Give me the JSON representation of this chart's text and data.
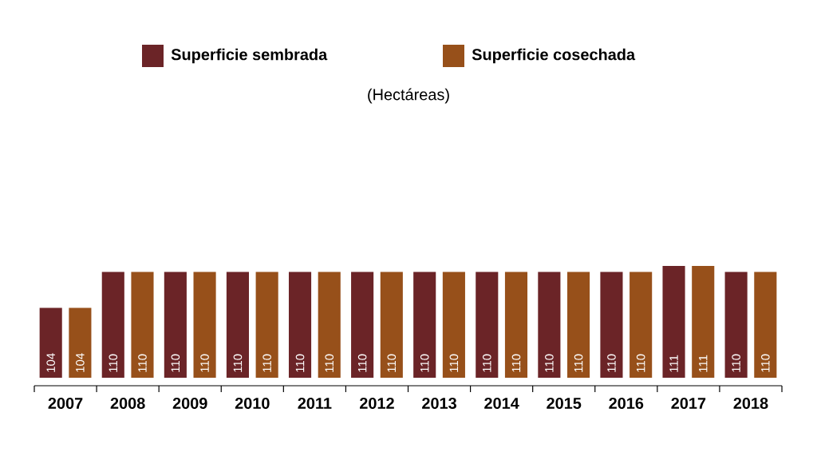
{
  "chart_data": {
    "type": "bar",
    "subtitle": "(Hectáreas)",
    "categories": [
      "2007",
      "2008",
      "2009",
      "2010",
      "2011",
      "2012",
      "2013",
      "2014",
      "2015",
      "2016",
      "2017",
      "2018"
    ],
    "series": [
      {
        "name": "Superficie sembrada",
        "color": "#6b2427",
        "values": [
          104,
          110,
          110,
          110,
          110,
          110,
          110,
          110,
          110,
          110,
          111,
          110
        ]
      },
      {
        "name": "Superficie cosechada",
        "color": "#97501a",
        "values": [
          104,
          110,
          110,
          110,
          110,
          110,
          110,
          110,
          110,
          110,
          111,
          110
        ]
      }
    ],
    "ylim": [
      92.3,
      111
    ],
    "data_labels": true,
    "legend": "top"
  }
}
